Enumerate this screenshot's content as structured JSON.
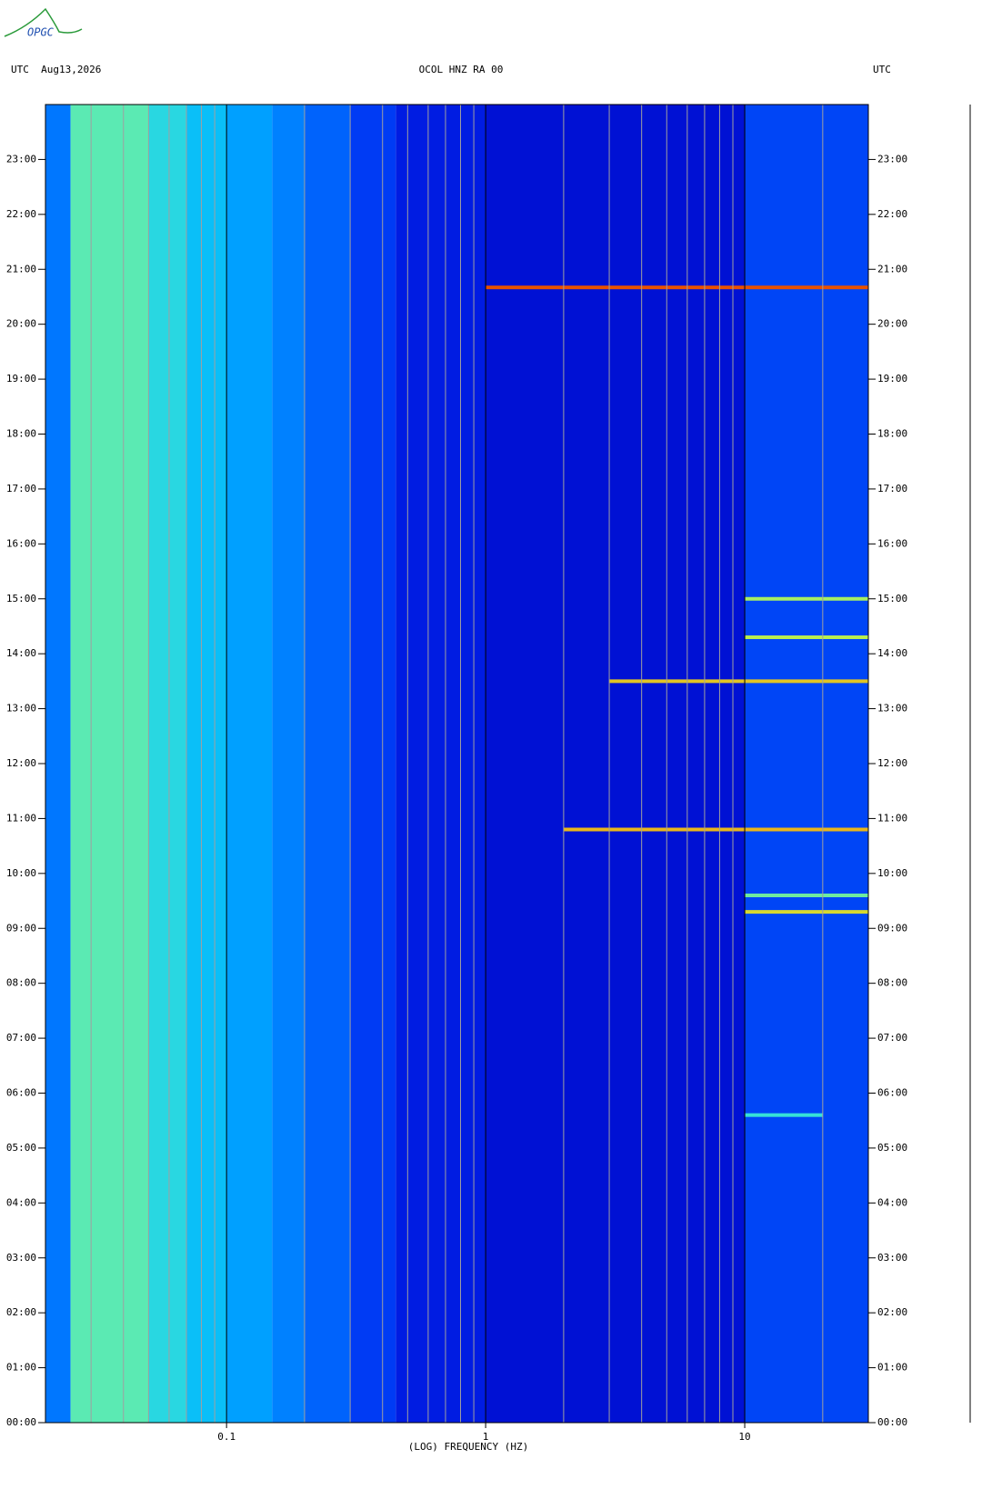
{
  "logo": "OPGC",
  "chart_data": {
    "type": "spectrogram",
    "title": "OCOL HNZ RA 00",
    "left_label": "UTC  Aug13,2026",
    "right_label": "UTC",
    "x_label": "(LOG) FREQUENCY (HZ)",
    "x_log": true,
    "xlim": [
      0.02,
      30
    ],
    "xticks": [
      0.1,
      1,
      10
    ],
    "minor_xgrid": [
      0.03,
      0.04,
      0.05,
      0.06,
      0.07,
      0.08,
      0.09,
      0.2,
      0.3,
      0.4,
      0.5,
      0.6,
      0.7,
      0.8,
      0.9,
      2,
      3,
      4,
      5,
      6,
      7,
      8,
      9,
      20
    ],
    "ylim": [
      0,
      24
    ],
    "yticks": [
      {
        "value": 0,
        "label": "00:00"
      },
      {
        "value": 1,
        "label": "01:00"
      },
      {
        "value": 2,
        "label": "02:00"
      },
      {
        "value": 3,
        "label": "03:00"
      },
      {
        "value": 4,
        "label": "04:00"
      },
      {
        "value": 5,
        "label": "05:00"
      },
      {
        "value": 6,
        "label": "06:00"
      },
      {
        "value": 7,
        "label": "07:00"
      },
      {
        "value": 8,
        "label": "08:00"
      },
      {
        "value": 9,
        "label": "09:00"
      },
      {
        "value": 10,
        "label": "10:00"
      },
      {
        "value": 11,
        "label": "11:00"
      },
      {
        "value": 12,
        "label": "12:00"
      },
      {
        "value": 13,
        "label": "13:00"
      },
      {
        "value": 14,
        "label": "14:00"
      },
      {
        "value": 15,
        "label": "15:00"
      },
      {
        "value": 16,
        "label": "16:00"
      },
      {
        "value": 17,
        "label": "17:00"
      },
      {
        "value": 18,
        "label": "18:00"
      },
      {
        "value": 19,
        "label": "19:00"
      },
      {
        "value": 20,
        "label": "20:00"
      },
      {
        "value": 21,
        "label": "21:00"
      },
      {
        "value": 22,
        "label": "22:00"
      },
      {
        "value": 23,
        "label": "23:00"
      }
    ],
    "colormap": [
      "#0000c0",
      "#0028f0",
      "#0070ff",
      "#00b8ff",
      "#40e8d0",
      "#c8f040",
      "#ff9000",
      "#c80000"
    ],
    "background": {
      "freq_edges": [
        0.02,
        0.025,
        0.05,
        0.07,
        0.1,
        0.15,
        0.2,
        0.3,
        0.45,
        1,
        10,
        30
      ],
      "levels": [
        0.3,
        0.6,
        0.52,
        0.45,
        0.38,
        0.32,
        0.26,
        0.18,
        0.1,
        0.06,
        0.2
      ]
    },
    "events": [
      {
        "hour": 20.67,
        "fmin": 1,
        "fmax": 30,
        "level": 0.92
      },
      {
        "hour": 10.8,
        "fmin": 2,
        "fmax": 30,
        "level": 0.8
      },
      {
        "hour": 13.5,
        "fmin": 3,
        "fmax": 30,
        "level": 0.78
      },
      {
        "hour": 9.3,
        "fmin": 10,
        "fmax": 30,
        "level": 0.75
      },
      {
        "hour": 14.3,
        "fmin": 10,
        "fmax": 30,
        "level": 0.7
      },
      {
        "hour": 15.0,
        "fmin": 10,
        "fmax": 30,
        "level": 0.68
      },
      {
        "hour": 9.6,
        "fmin": 10,
        "fmax": 30,
        "level": 0.62
      },
      {
        "hour": 5.6,
        "fmin": 10,
        "fmax": 20,
        "level": 0.55
      }
    ]
  }
}
